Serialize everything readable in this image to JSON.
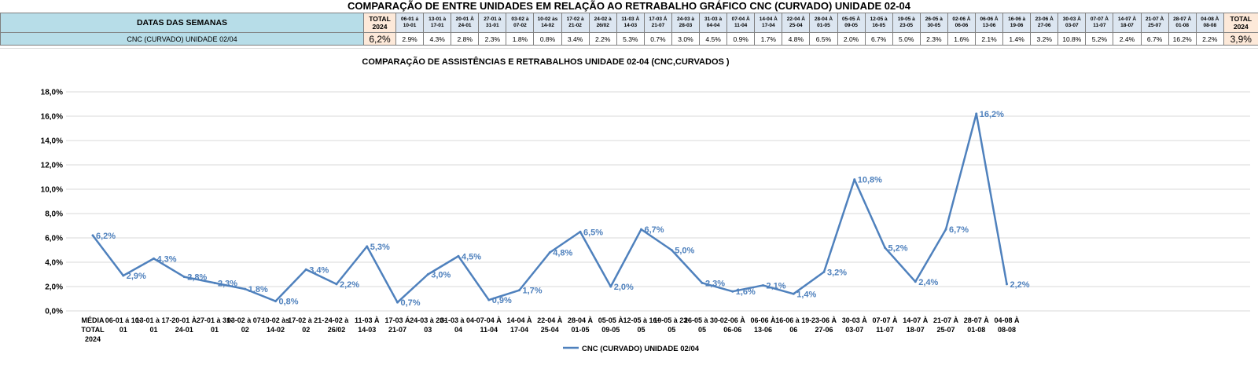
{
  "title": "COMPARAÇÃO DE ENTRE UNIDADES EM RELAÇÃO AO RETRABALHO GRÁFICO CNC (CURVADO) UNIDADE 02-04",
  "table": {
    "header_label": "DATAS DAS SEMANAS",
    "row_label": "CNC (CURVADO) UNIDADE 02/04",
    "total_first_header": [
      "TOTAL",
      "2024"
    ],
    "total_first_value": "6,2%",
    "total_last_header": [
      "TOTAL",
      "2024"
    ],
    "total_last_value": "3,9%",
    "weeks": [
      {
        "l1": "06-01 á",
        "l2": "10-01",
        "v": "2.9%"
      },
      {
        "l1": "13-01 à",
        "l2": "17-01",
        "v": "4.3%"
      },
      {
        "l1": "20-01 À",
        "l2": "24-01",
        "v": "2.8%"
      },
      {
        "l1": "27-01 à",
        "l2": "31-01",
        "v": "2.3%"
      },
      {
        "l1": "03-02 à",
        "l2": "07-02",
        "v": "1.8%"
      },
      {
        "l1": "10-02 às",
        "l2": "14-02",
        "v": "0.8%"
      },
      {
        "l1": "17-02 à",
        "l2": "21-02",
        "v": "3.4%"
      },
      {
        "l1": "24-02 à",
        "l2": "26/02",
        "v": "2.2%"
      },
      {
        "l1": "11-03 À",
        "l2": "14-03",
        "v": "5.3%"
      },
      {
        "l1": "17-03 Á",
        "l2": "21-07",
        "v": "0.7%"
      },
      {
        "l1": "24-03 à",
        "l2": "28-03",
        "v": "3.0%"
      },
      {
        "l1": "31-03 à",
        "l2": "04-04",
        "v": "4.5%"
      },
      {
        "l1": "07-04 À",
        "l2": "11-04",
        "v": "0.9%"
      },
      {
        "l1": "14-04 À",
        "l2": "17-04",
        "v": "1.7%"
      },
      {
        "l1": "22-04 À",
        "l2": "25-04",
        "v": "4.8%"
      },
      {
        "l1": "28-04 À",
        "l2": "01-05",
        "v": "6.5%"
      },
      {
        "l1": "05-05 À",
        "l2": "09-05",
        "v": "2.0%"
      },
      {
        "l1": "12-05 à",
        "l2": "16-05",
        "v": "6.7%"
      },
      {
        "l1": "19-05 à",
        "l2": "23-05",
        "v": "5.0%"
      },
      {
        "l1": "26-05 à",
        "l2": "30-05",
        "v": "2.3%"
      },
      {
        "l1": "02-06 À",
        "l2": "06-06",
        "v": "1.6%"
      },
      {
        "l1": "06-06 À",
        "l2": "13-06",
        "v": "2.1%"
      },
      {
        "l1": "16-06 à",
        "l2": "19-06",
        "v": "1.4%"
      },
      {
        "l1": "23-06 À",
        "l2": "27-06",
        "v": "3.2%"
      },
      {
        "l1": "30-03 À",
        "l2": "03-07",
        "v": "10.8%"
      },
      {
        "l1": "07-07 À",
        "l2": "11-07",
        "v": "5.2%"
      },
      {
        "l1": "14-07 À",
        "l2": "18-07",
        "v": "2.4%"
      },
      {
        "l1": "21-07 À",
        "l2": "25-07",
        "v": "6.7%"
      },
      {
        "l1": "28-07 À",
        "l2": "01-08",
        "v": "16.2%"
      },
      {
        "l1": "04-08 À",
        "l2": "08-08",
        "v": "2.2%"
      }
    ]
  },
  "chart_data": {
    "type": "line",
    "title": "COMPARAÇÃO DE ASSISTÊNCIAS E RETRABALHOS UNIDADE 02-04  (CNC,CURVADOS )",
    "xlabel": "",
    "ylabel": "",
    "ylim": [
      0,
      18
    ],
    "yticks": [
      "0,0%",
      "2,0%",
      "4,0%",
      "6,0%",
      "8,0%",
      "10,0%",
      "12,0%",
      "14,0%",
      "16,0%",
      "18,0%"
    ],
    "grid": true,
    "legend_position": "bottom",
    "color": "#4f81bd",
    "categories": [
      [
        "MÉDIA",
        "TOTAL",
        "2024"
      ],
      [
        "06-01 á 10-",
        "01"
      ],
      [
        "13-01 à 17-",
        "01"
      ],
      [
        "20-01 À",
        "24-01"
      ],
      [
        "27-01 à 31-",
        "01"
      ],
      [
        "03-02 à 07-",
        "02"
      ],
      [
        "10-02 às",
        "14-02"
      ],
      [
        "17-02 à 21-",
        "02"
      ],
      [
        "24-02 à",
        "26/02"
      ],
      [
        "11-03 À",
        "14-03"
      ],
      [
        "17-03 Á",
        "21-07"
      ],
      [
        "24-03 à 28-",
        "03"
      ],
      [
        "31-03 à 04-",
        "04"
      ],
      [
        "07-04 À",
        "11-04"
      ],
      [
        "14-04 À",
        "17-04"
      ],
      [
        "22-04 À",
        "25-04"
      ],
      [
        "28-04 À",
        "01-05"
      ],
      [
        "05-05 À",
        "09-05"
      ],
      [
        "12-05 à 16-",
        "05"
      ],
      [
        "19-05 à 23-",
        "05"
      ],
      [
        "26-05 à 30-",
        "05"
      ],
      [
        "02-06 À",
        "06-06"
      ],
      [
        "06-06 À",
        "13-06"
      ],
      [
        "16-06 à 19-",
        "06"
      ],
      [
        "23-06 À",
        "27-06"
      ],
      [
        "30-03 À",
        "03-07"
      ],
      [
        "07-07 À",
        "11-07"
      ],
      [
        "14-07 À",
        "18-07"
      ],
      [
        "21-07 À",
        "25-07"
      ],
      [
        "28-07 À",
        "01-08"
      ],
      [
        "04-08 À",
        "08-08"
      ]
    ],
    "series": [
      {
        "name": "CNC (CURVADO) UNIDADE 02/04",
        "values": [
          6.2,
          2.9,
          4.3,
          2.8,
          2.3,
          1.8,
          0.8,
          3.4,
          2.2,
          5.3,
          0.7,
          3.0,
          4.5,
          0.9,
          1.7,
          4.8,
          6.5,
          2.0,
          6.7,
          5.0,
          2.3,
          1.6,
          2.1,
          1.4,
          3.2,
          10.8,
          5.2,
          2.4,
          6.7,
          16.2,
          2.2
        ],
        "labels": [
          "6,2%",
          "2,9%",
          "4,3%",
          "2,8%",
          "2,3%",
          "1,8%",
          "0,8%",
          "3,4%",
          "2,2%",
          "5,3%",
          "0,7%",
          "3,0%",
          "4,5%",
          "0,9%",
          "1,7%",
          "4,8%",
          "6,5%",
          "2,0%",
          "6,7%",
          "5,0%",
          "2,3%",
          "1,6%",
          "2,1%",
          "1,4%",
          "3,2%",
          "10,8%",
          "5,2%",
          "2,4%",
          "6,7%",
          "16,2%",
          "2,2%"
        ]
      }
    ]
  }
}
